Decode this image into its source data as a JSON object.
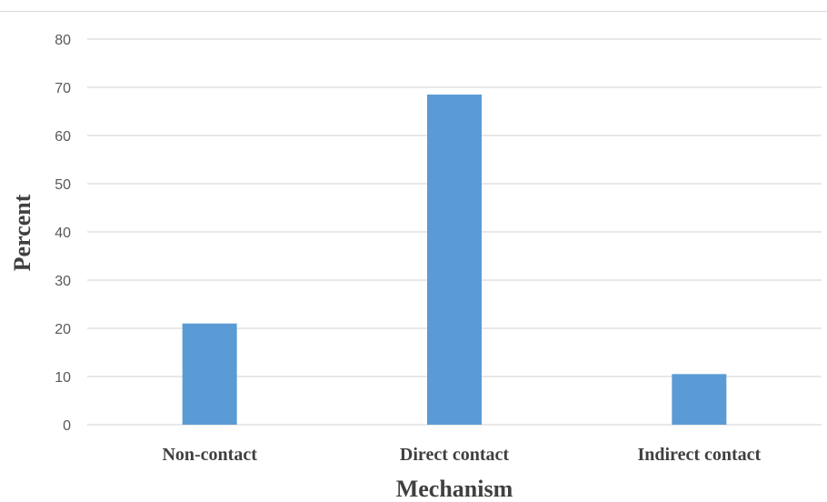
{
  "chart_data": {
    "type": "bar",
    "title": "",
    "xlabel": "Mechanism",
    "ylabel": "Percent",
    "categories": [
      "Non-contact",
      "Direct contact",
      "Indirect contact"
    ],
    "series": [
      {
        "values": [
          21,
          68.5,
          10.5
        ],
        "color": "#5b9bd5"
      }
    ],
    "ylim": [
      0,
      80
    ],
    "yticks": [
      0,
      10,
      20,
      30,
      40,
      50,
      60,
      70,
      80
    ],
    "grid": true,
    "gridColor": "#d9d9d9"
  }
}
